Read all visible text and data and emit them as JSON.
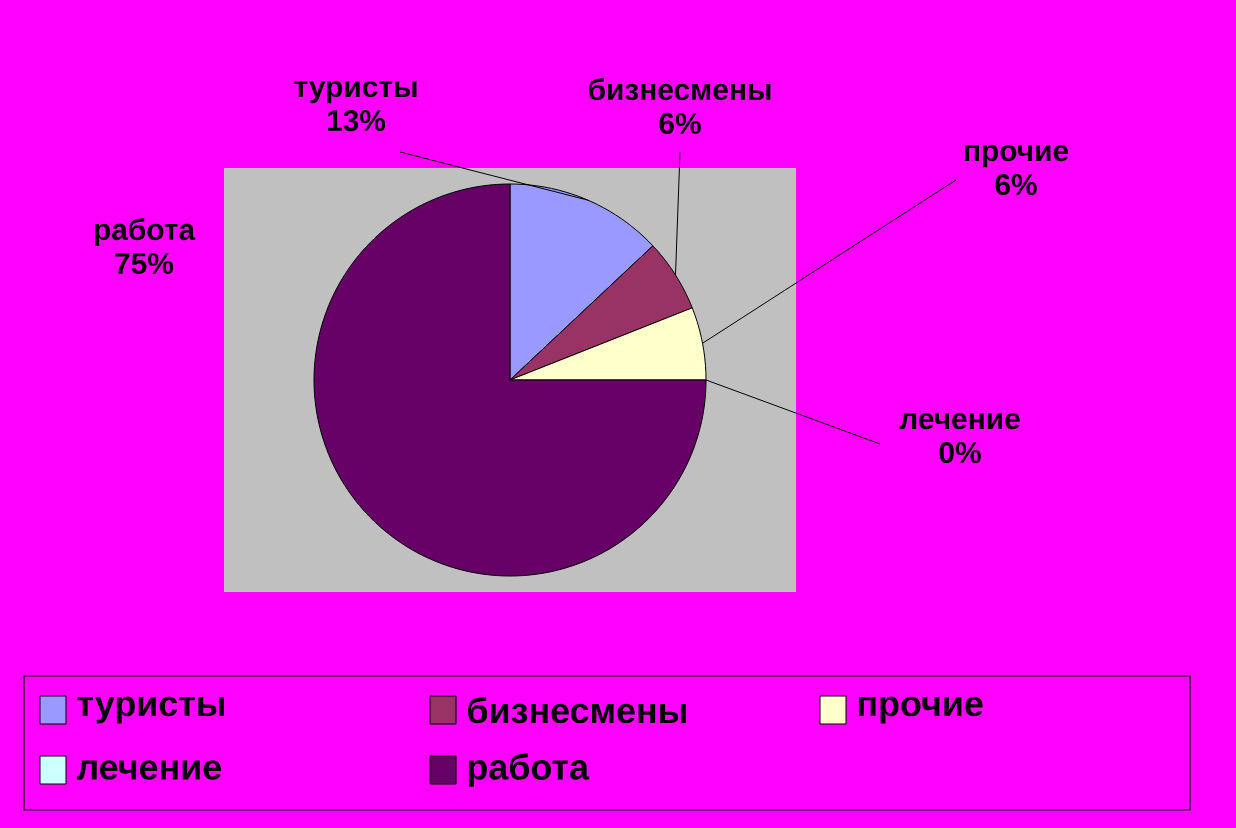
{
  "chart_data": {
    "type": "pie",
    "categories": [
      "туристы",
      "бизнесмены",
      "прочие",
      "лечение",
      "работа"
    ],
    "values": [
      13,
      6,
      6,
      0,
      75
    ],
    "value_labels": [
      "13%",
      "6%",
      "6%",
      "0%",
      "75%"
    ],
    "colors": [
      "#9999ff",
      "#993366",
      "#ffffcc",
      "#ccffff",
      "#660066"
    ],
    "legend": "bottom"
  }
}
